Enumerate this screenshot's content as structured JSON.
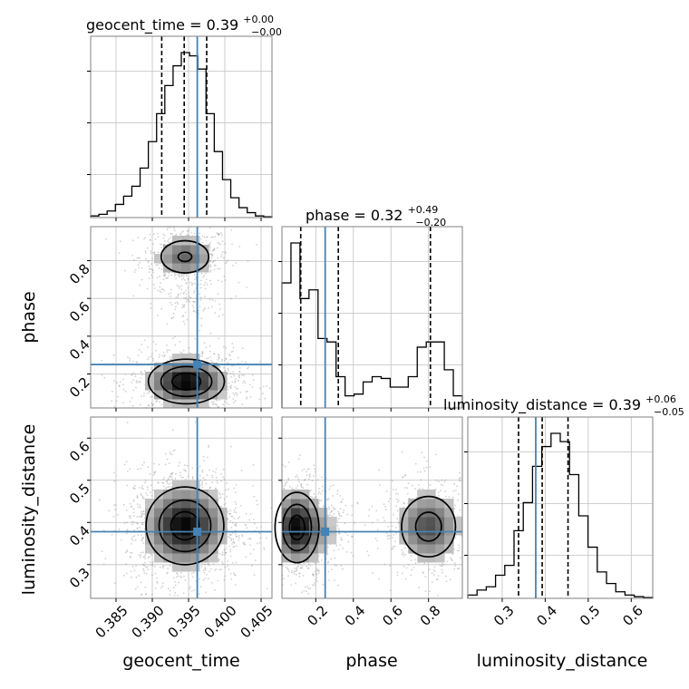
{
  "colors": {
    "truth": "#4682b4",
    "hist": "#000000",
    "contour": "#000000",
    "grid": "#c0c0c0",
    "points": "#9a9a9a"
  },
  "chart_data": {
    "type": "corner",
    "parameters": [
      "geocent_time",
      "phase",
      "luminosity_distance"
    ],
    "truths": {
      "geocent_time": 0.3962,
      "phase": 0.25,
      "luminosity_distance": 0.378
    },
    "ranges": {
      "geocent_time": [
        0.3815,
        0.4065
      ],
      "phase": [
        0.02,
        0.98
      ],
      "luminosity_distance": [
        0.22,
        0.65
      ]
    },
    "ticks": {
      "geocent_time": {
        "values": [
          0.385,
          0.39,
          0.395,
          0.4,
          0.405
        ],
        "labels": [
          "0.385",
          "0.390",
          "0.395",
          "0.400",
          "0.405"
        ]
      },
      "phase": {
        "values": [
          0.2,
          0.4,
          0.6,
          0.8
        ],
        "labels": [
          "0.2",
          "0.4",
          "0.6",
          "0.8"
        ]
      },
      "luminosity_distance": {
        "values": [
          0.3,
          0.4,
          0.5,
          0.6
        ],
        "labels": [
          "0.3",
          "0.4",
          "0.5",
          "0.6"
        ]
      }
    },
    "titles": {
      "geocent_time": {
        "lhs": "geocent_time = 0.39",
        "sup": "+0.00",
        "sub": "−0.00"
      },
      "phase": {
        "lhs": "phase = 0.32",
        "sup": "+0.49",
        "sub": "−0.20"
      },
      "luminosity_distance": {
        "lhs": "luminosity_distance = 0.39",
        "sup": "+0.06",
        "sub": "−0.05"
      }
    },
    "quantiles": {
      "geocent_time": [
        0.3913,
        0.3944,
        0.3975
      ],
      "phase": [
        0.12,
        0.32,
        0.81
      ],
      "luminosity_distance": [
        0.338,
        0.393,
        0.453
      ]
    },
    "histograms": {
      "geocent_time": {
        "edges_range": [
          0.3815,
          0.4065
        ],
        "counts": [
          1,
          2,
          4,
          8,
          13,
          19,
          30,
          46,
          63,
          80,
          92,
          100,
          98,
          90,
          63,
          40,
          23,
          12,
          6,
          3,
          1,
          0.5
        ]
      },
      "phase": {
        "edges_range": [
          0.02,
          0.98
        ],
        "counts": [
          72,
          95,
          63,
          68,
          40,
          38,
          18,
          7,
          8,
          15,
          18,
          17,
          12,
          12,
          18,
          35,
          38,
          38,
          22,
          7
        ]
      },
      "luminosity_distance": {
        "edges_range": [
          0.22,
          0.65
        ],
        "counts": [
          2,
          5,
          7,
          14,
          20,
          41,
          58,
          80,
          92,
          100,
          95,
          75,
          50,
          31,
          16,
          9,
          4,
          2,
          1,
          0.5
        ]
      }
    },
    "grid": true
  }
}
